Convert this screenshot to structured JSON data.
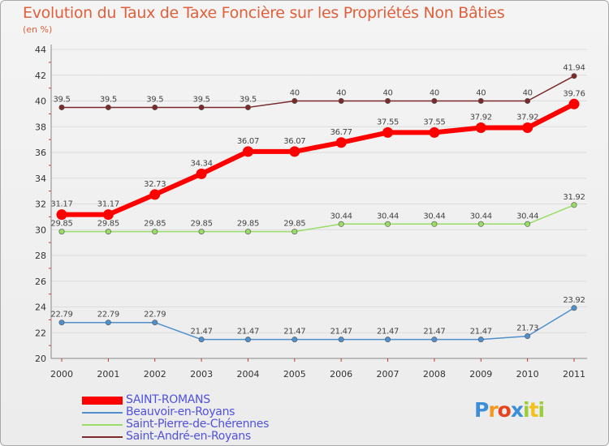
{
  "chart_data": {
    "type": "line",
    "title": "Evolution du Taux de Taxe Foncière sur les Propriétés Non Bâties",
    "subtitle": "(en %)",
    "xlabel": "",
    "ylabel": "",
    "ylim": [
      20,
      44
    ],
    "yticks": [
      20,
      22,
      24,
      26,
      28,
      30,
      32,
      34,
      36,
      38,
      40,
      42,
      44
    ],
    "categories": [
      "2000",
      "2001",
      "2002",
      "2003",
      "2004",
      "2005",
      "2006",
      "2007",
      "2008",
      "2009",
      "2010",
      "2011"
    ],
    "legend_position": "bottom-left",
    "series": [
      {
        "name": "SAINT-ROMANS",
        "color": "#ff0000",
        "values": [
          31.17,
          31.17,
          32.73,
          34.34,
          36.07,
          36.07,
          36.77,
          37.55,
          37.55,
          37.92,
          37.92,
          39.76
        ],
        "labels": [
          "31.17",
          "31.17",
          "32.73",
          "34.34",
          "36.07",
          "36.07",
          "36.77",
          "37.55",
          "37.55",
          "37.92",
          "37.92",
          "39.76"
        ]
      },
      {
        "name": "Beauvoir-en-Royans",
        "color": "#4f8fcc",
        "values": [
          22.79,
          22.79,
          22.79,
          21.47,
          21.47,
          21.47,
          21.47,
          21.47,
          21.47,
          21.47,
          21.73,
          23.92
        ],
        "labels": [
          "22.79",
          "22.79",
          "22.79",
          "21.47",
          "21.47",
          "21.47",
          "21.47",
          "21.47",
          "21.47",
          "21.47",
          "21.73",
          "23.92"
        ]
      },
      {
        "name": "Saint-Pierre-de-Chérennes",
        "color": "#99dd66",
        "values": [
          29.85,
          29.85,
          29.85,
          29.85,
          29.85,
          29.85,
          30.44,
          30.44,
          30.44,
          30.44,
          30.44,
          31.92
        ],
        "labels": [
          "29.85",
          "29.85",
          "29.85",
          "29.85",
          "29.85",
          "29.85",
          "30.44",
          "30.44",
          "30.44",
          "30.44",
          "30.44",
          "31.92"
        ]
      },
      {
        "name": "Saint-André-en-Royans",
        "color": "#7a2a2a",
        "values": [
          39.5,
          39.5,
          39.5,
          39.5,
          39.5,
          40,
          40,
          40,
          40,
          40,
          40,
          41.94
        ],
        "labels": [
          "39.5",
          "39.5",
          "39.5",
          "39.5",
          "39.5",
          "40",
          "40",
          "40",
          "40",
          "40",
          "40",
          "41.94"
        ]
      }
    ]
  },
  "logo": {
    "text": "Proxiti"
  }
}
